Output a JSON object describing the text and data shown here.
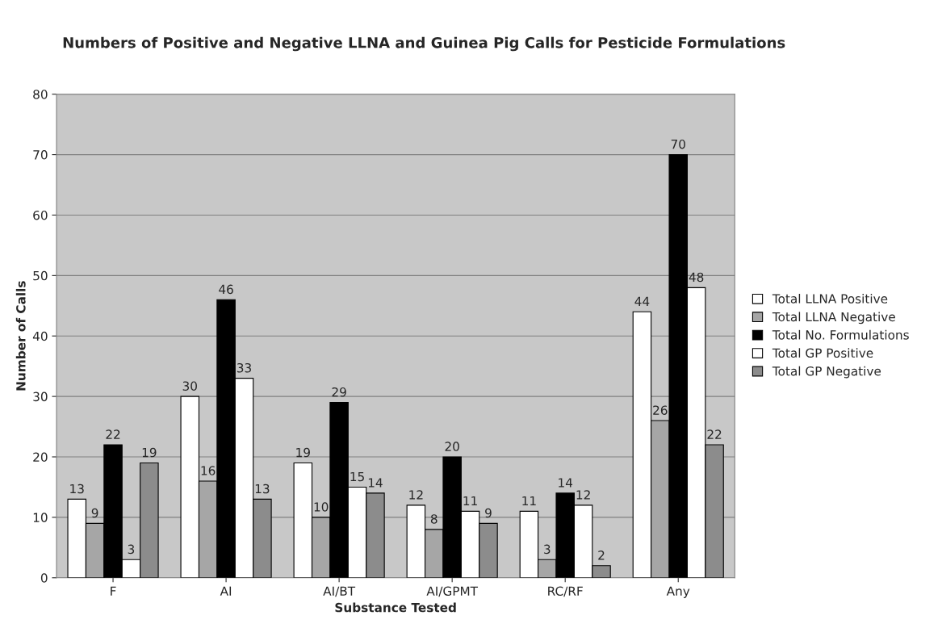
{
  "chart_data": {
    "type": "bar",
    "title": "Numbers of Positive and Negative LLNA and Guinea Pig Calls for Pesticide Formulations",
    "xlabel": "Substance Tested",
    "ylabel": "Number of Calls",
    "categories": [
      "F",
      "AI",
      "AI/BT",
      "AI/GPMT",
      "RC/RF",
      "Any"
    ],
    "series": [
      {
        "name": "Total LLNA Positive",
        "color": "#ffffff",
        "values": [
          13,
          30,
          19,
          12,
          11,
          44
        ]
      },
      {
        "name": "Total LLNA Negative",
        "color": "#a6a6a6",
        "values": [
          9,
          16,
          10,
          8,
          3,
          26
        ]
      },
      {
        "name": "Total No. Formulations",
        "color": "#000000",
        "values": [
          22,
          46,
          29,
          20,
          14,
          70
        ]
      },
      {
        "name": "Total GP Positive",
        "color": "#ffffff",
        "values": [
          3,
          33,
          15,
          11,
          12,
          48
        ]
      },
      {
        "name": "Total GP Negative",
        "color": "#8c8c8c",
        "values": [
          19,
          13,
          14,
          9,
          2,
          22
        ]
      }
    ],
    "ylim": [
      0,
      80
    ],
    "yticks": [
      0,
      10,
      20,
      30,
      40,
      50,
      60,
      70,
      80
    ],
    "grid": "y",
    "legend": "right",
    "data_labels": true
  }
}
